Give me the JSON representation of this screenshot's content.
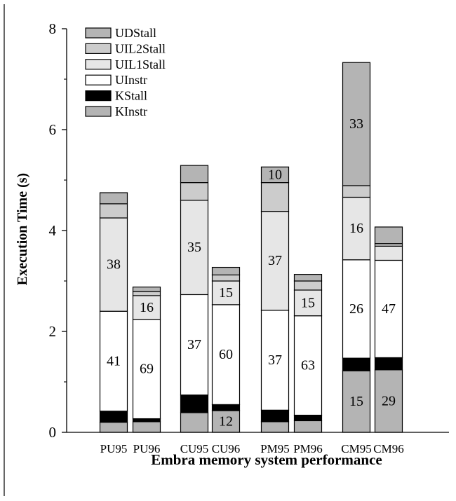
{
  "chart_data": {
    "type": "bar",
    "stacked": true,
    "title": "Embra memory system performance",
    "xlabel": "",
    "ylabel": "Execution Time (s)",
    "ylim": [
      0,
      8
    ],
    "yticks": [
      0,
      2,
      4,
      6,
      8
    ],
    "grid": false,
    "legend_position": "top-left",
    "categories": [
      "PU95",
      "PU96",
      "CU95",
      "CU96",
      "PM95",
      "PM96",
      "CM95",
      "CM96"
    ],
    "series": [
      {
        "name": "KInstr",
        "color": "#b4b4b4",
        "values": [
          0.2,
          0.21,
          0.39,
          0.43,
          0.21,
          0.23,
          1.22,
          1.24
        ]
      },
      {
        "name": "KStall",
        "color": "#000000",
        "values": [
          0.22,
          0.06,
          0.35,
          0.12,
          0.23,
          0.11,
          0.25,
          0.24
        ]
      },
      {
        "name": "UInstr",
        "color": "#ffffff",
        "values": [
          1.98,
          1.97,
          1.99,
          1.98,
          1.98,
          1.97,
          1.95,
          1.93
        ]
      },
      {
        "name": "UIL1Stall",
        "color": "#e6e6e6",
        "values": [
          1.85,
          0.47,
          1.87,
          0.47,
          1.96,
          0.51,
          1.24,
          0.28
        ]
      },
      {
        "name": "UIL2Stall",
        "color": "#cccccc",
        "values": [
          0.28,
          0.08,
          0.35,
          0.12,
          0.57,
          0.18,
          0.23,
          0.05
        ]
      },
      {
        "name": "UDStall",
        "color": "#b4b4b4",
        "values": [
          0.22,
          0.09,
          0.34,
          0.15,
          0.31,
          0.13,
          2.44,
          0.33
        ]
      }
    ],
    "annotations": [
      {
        "category": "PU95",
        "series": "UIL1Stall",
        "label": "38"
      },
      {
        "category": "PU95",
        "series": "UInstr",
        "label": "41"
      },
      {
        "category": "PU96",
        "series": "UIL1Stall",
        "label": "16"
      },
      {
        "category": "PU96",
        "series": "UInstr",
        "label": "69"
      },
      {
        "category": "CU95",
        "series": "UIL1Stall",
        "label": "35"
      },
      {
        "category": "CU95",
        "series": "UInstr",
        "label": "37"
      },
      {
        "category": "CU96",
        "series": "UIL1Stall",
        "label": "15"
      },
      {
        "category": "CU96",
        "series": "UInstr",
        "label": "60"
      },
      {
        "category": "CU96",
        "series": "KInstr",
        "label": "12"
      },
      {
        "category": "PM95",
        "series": "UDStall",
        "label": "10"
      },
      {
        "category": "PM95",
        "series": "UIL1Stall",
        "label": "37"
      },
      {
        "category": "PM95",
        "series": "UInstr",
        "label": "37"
      },
      {
        "category": "PM96",
        "series": "UIL1Stall",
        "label": "15"
      },
      {
        "category": "PM96",
        "series": "UInstr",
        "label": "63"
      },
      {
        "category": "CM95",
        "series": "UDStall",
        "label": "33"
      },
      {
        "category": "CM95",
        "series": "UIL1Stall",
        "label": "16"
      },
      {
        "category": "CM95",
        "series": "UInstr",
        "label": "26"
      },
      {
        "category": "CM95",
        "series": "KInstr",
        "label": "15"
      },
      {
        "category": "CM96",
        "series": "UInstr",
        "label": "47"
      },
      {
        "category": "CM96",
        "series": "KInstr",
        "label": "29"
      }
    ]
  }
}
